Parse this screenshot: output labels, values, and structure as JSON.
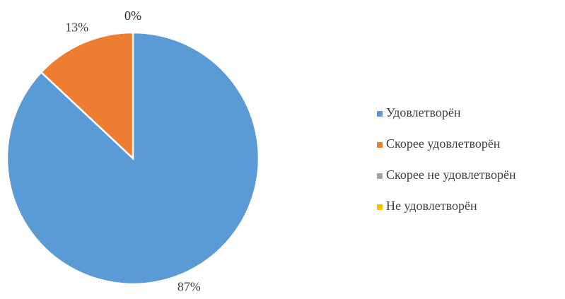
{
  "chart_data": {
    "type": "pie",
    "categories": [
      "Удовлетворён",
      "Скорее удовлетворён",
      "Скорее не удовлетворён",
      "Не удовлетворён"
    ],
    "values": [
      87,
      13,
      0,
      0
    ],
    "value_labels": [
      "87%",
      "13%",
      "0%",
      "0%"
    ],
    "colors": [
      "#5b9bd5",
      "#ed7d31",
      "#a5a5a5",
      "#ffc000"
    ],
    "legend": "right"
  }
}
